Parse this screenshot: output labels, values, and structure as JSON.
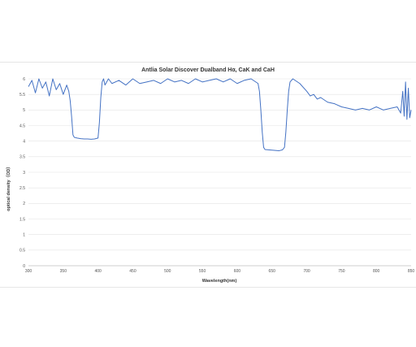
{
  "chart_data": {
    "type": "line",
    "title": "Antlia Solar Discover Dualband Hα, CaK and CaH",
    "xlabel": "Wavelength(nm)",
    "ylabel": "optical density（OD）",
    "xlim": [
      300,
      850
    ],
    "ylim": [
      0,
      6
    ],
    "x_ticks": [
      300,
      350,
      400,
      450,
      500,
      550,
      600,
      650,
      700,
      750,
      800,
      850
    ],
    "y_ticks": [
      0,
      0.5,
      1,
      1.5,
      2,
      2.5,
      3,
      3.5,
      4,
      4.5,
      5,
      5.5,
      6
    ],
    "grid": "horizontal",
    "line_color": "#4472c4",
    "series": [
      {
        "x": [
          300,
          305,
          310,
          315,
          320,
          325,
          330,
          335,
          340,
          345,
          350,
          355,
          358,
          360,
          362,
          364,
          366,
          370,
          375,
          380,
          385,
          390,
          395,
          400,
          402,
          404,
          406,
          408,
          410,
          415,
          420,
          430,
          440,
          450,
          460,
          470,
          480,
          490,
          500,
          510,
          520,
          530,
          540,
          550,
          560,
          570,
          580,
          590,
          600,
          610,
          620,
          630,
          632,
          634,
          636,
          638,
          640,
          645,
          650,
          655,
          660,
          665,
          668,
          670,
          672,
          674,
          676,
          680,
          690,
          700,
          705,
          710,
          715,
          720,
          730,
          740,
          750,
          760,
          770,
          780,
          790,
          800,
          810,
          820,
          830,
          835,
          838,
          840,
          842,
          844,
          846,
          848,
          850
        ],
        "values": [
          5.75,
          5.95,
          5.55,
          6.0,
          5.7,
          5.9,
          5.45,
          6.0,
          5.65,
          5.85,
          5.5,
          5.8,
          5.6,
          5.3,
          4.8,
          4.2,
          4.12,
          4.1,
          4.08,
          4.07,
          4.07,
          4.06,
          4.07,
          4.1,
          4.6,
          5.4,
          5.9,
          6.0,
          5.8,
          6.0,
          5.85,
          5.95,
          5.8,
          6.0,
          5.85,
          5.9,
          5.95,
          5.85,
          6.0,
          5.9,
          5.95,
          5.85,
          6.0,
          5.9,
          5.95,
          6.0,
          5.9,
          6.0,
          5.85,
          5.95,
          6.0,
          5.85,
          5.6,
          5.0,
          4.3,
          3.8,
          3.73,
          3.72,
          3.71,
          3.7,
          3.69,
          3.72,
          3.8,
          4.3,
          5.0,
          5.6,
          5.9,
          6.0,
          5.85,
          5.6,
          5.45,
          5.5,
          5.35,
          5.4,
          5.25,
          5.2,
          5.1,
          5.05,
          5.0,
          5.05,
          5.0,
          5.1,
          5.0,
          5.05,
          5.1,
          4.9,
          5.6,
          4.8,
          5.9,
          4.7,
          5.7,
          4.75,
          5.0
        ]
      }
    ]
  }
}
